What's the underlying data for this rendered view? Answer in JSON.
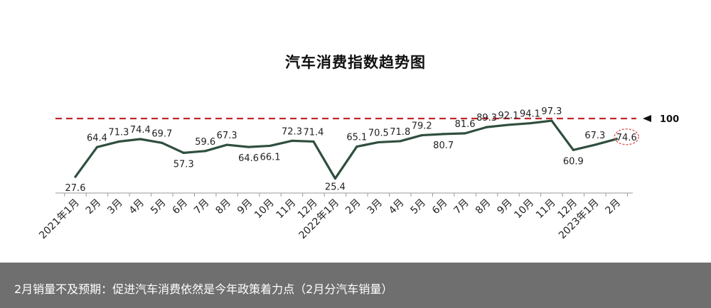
{
  "chart_data": {
    "type": "line",
    "title": "汽车消费指数趋势图",
    "categories": [
      "2021年1月",
      "2月",
      "3月",
      "4月",
      "5月",
      "6月",
      "7月",
      "8月",
      "9月",
      "10月",
      "11月",
      "12月",
      "2022年1月",
      "2月",
      "3月",
      "4月",
      "5月",
      "6月",
      "7月",
      "8月",
      "9月",
      "10月",
      "11月",
      "12月",
      "2023年1月",
      "2月"
    ],
    "values": [
      27.6,
      64.4,
      71.3,
      74.4,
      69.7,
      57.3,
      59.6,
      67.3,
      64.6,
      66.1,
      72.3,
      71.4,
      25.4,
      65.1,
      70.5,
      71.8,
      79.2,
      80.7,
      81.6,
      89.3,
      92.1,
      94.1,
      97.3,
      60.9,
      67.3,
      74.6
    ],
    "value_labels": [
      "27.6",
      "64.4",
      "71.3",
      "74.4",
      "69.7",
      "57.3",
      "59.6",
      "67.3",
      "64.6",
      "66.1",
      "72.3",
      "71.4",
      "25.4",
      "65.1",
      "70.5",
      "71.8",
      "79.2",
      "80.7",
      "81.6",
      "89.3",
      "92.1",
      "94.1",
      "97.3",
      "60.9",
      "67.3",
      "74.6"
    ],
    "reference_line": {
      "value": 100,
      "label": "100",
      "color": "#c0272d",
      "style": "dashed"
    },
    "highlight_index": 25,
    "series_color": "#2f4f3e",
    "highlight_color": "#e05050",
    "grid": false,
    "legend": "none"
  },
  "caption": {
    "text": "2月销量不及预期：促进汽车消费依然是今年政策着力点（2月分汽车销量）"
  }
}
